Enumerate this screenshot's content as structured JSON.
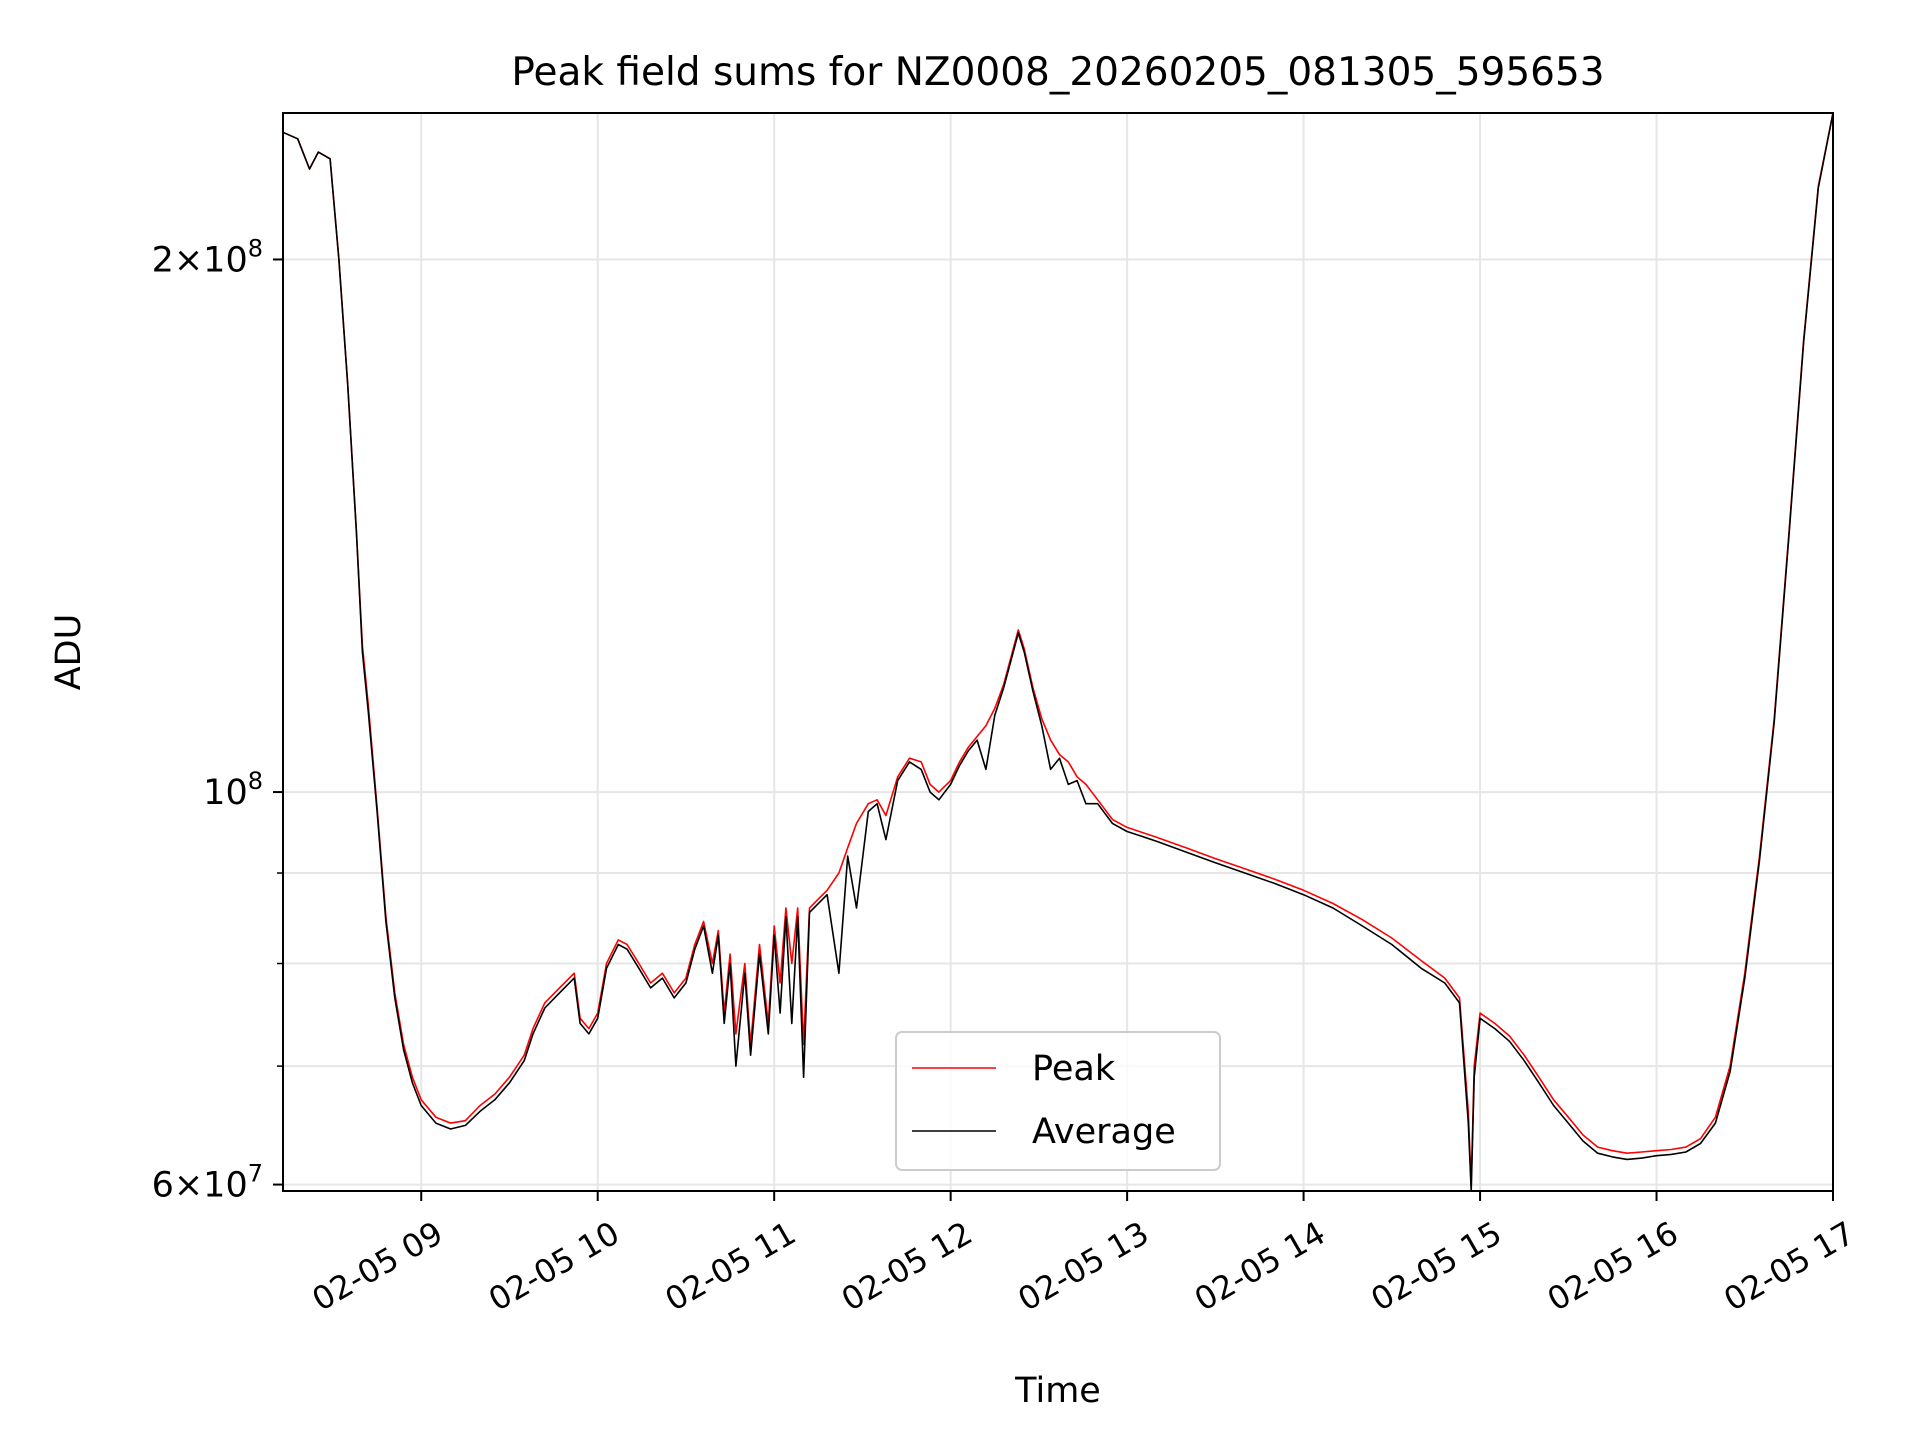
{
  "chart_data": {
    "type": "line",
    "title": "Peak field sums for NZ0008_20260205_081305_595653",
    "xlabel": "Time",
    "ylabel": "ADU",
    "yscale": "log",
    "xlim": [
      "2026-02-05 08:13",
      "2026-02-05 17:00"
    ],
    "ylim": [
      59500000,
      242000000
    ],
    "x_ticks": [
      {
        "t": "2026-02-05 09:00",
        "label": "02-05 09"
      },
      {
        "t": "2026-02-05 10:00",
        "label": "02-05 10"
      },
      {
        "t": "2026-02-05 11:00",
        "label": "02-05 11"
      },
      {
        "t": "2026-02-05 12:00",
        "label": "02-05 12"
      },
      {
        "t": "2026-02-05 13:00",
        "label": "02-05 13"
      },
      {
        "t": "2026-02-05 14:00",
        "label": "02-05 14"
      },
      {
        "t": "2026-02-05 15:00",
        "label": "02-05 15"
      },
      {
        "t": "2026-02-05 16:00",
        "label": "02-05 16"
      },
      {
        "t": "2026-02-05 17:00",
        "label": "02-05 17"
      }
    ],
    "y_major_ticks": [
      {
        "value": 60000000,
        "mantissa": "6",
        "exp": "7"
      },
      {
        "value": 100000000,
        "mantissa": "",
        "exp": "8"
      },
      {
        "value": 200000000,
        "mantissa": "2",
        "exp": "8"
      }
    ],
    "y_minor_ticks": [
      70000000,
      80000000,
      90000000
    ],
    "grid": true,
    "legend_position": "lower center",
    "series": [
      {
        "name": "Peak",
        "color": "#ff0000",
        "points": [
          [
            "08:13",
            236000000
          ],
          [
            "08:18",
            234000000
          ],
          [
            "08:22",
            225000000
          ],
          [
            "08:25",
            230000000
          ],
          [
            "08:29",
            228000000
          ],
          [
            "08:32",
            200000000
          ],
          [
            "08:35",
            170000000
          ],
          [
            "08:38",
            140000000
          ],
          [
            "08:40",
            121000000
          ],
          [
            "08:42",
            112000000
          ],
          [
            "08:45",
            98000000
          ],
          [
            "08:48",
            85000000
          ],
          [
            "08:51",
            77000000
          ],
          [
            "08:54",
            72000000
          ],
          [
            "08:57",
            69000000
          ],
          [
            "09:00",
            67000000
          ],
          [
            "09:05",
            65500000
          ],
          [
            "09:10",
            65000000
          ],
          [
            "09:15",
            65200000
          ],
          [
            "09:20",
            66500000
          ],
          [
            "09:25",
            67500000
          ],
          [
            "09:30",
            69000000
          ],
          [
            "09:35",
            71000000
          ],
          [
            "09:38",
            73500000
          ],
          [
            "09:42",
            76000000
          ],
          [
            "09:47",
            77500000
          ],
          [
            "09:52",
            79000000
          ],
          [
            "09:54",
            74500000
          ],
          [
            "09:57",
            73500000
          ],
          [
            "10:00",
            75000000
          ],
          [
            "10:03",
            80000000
          ],
          [
            "10:07",
            82500000
          ],
          [
            "10:10",
            82000000
          ],
          [
            "10:14",
            80000000
          ],
          [
            "10:18",
            78000000
          ],
          [
            "10:22",
            79000000
          ],
          [
            "10:26",
            77000000
          ],
          [
            "10:30",
            78500000
          ],
          [
            "10:33",
            82000000
          ],
          [
            "10:36",
            84500000
          ],
          [
            "10:39",
            80000000
          ],
          [
            "10:41",
            83500000
          ],
          [
            "10:43",
            75000000
          ],
          [
            "10:45",
            81000000
          ],
          [
            "10:47",
            73000000
          ],
          [
            "10:50",
            80000000
          ],
          [
            "10:52",
            72000000
          ],
          [
            "10:55",
            82000000
          ],
          [
            "10:58",
            74000000
          ],
          [
            "11:00",
            84000000
          ],
          [
            "11:02",
            78000000
          ],
          [
            "11:04",
            86000000
          ],
          [
            "11:06",
            80000000
          ],
          [
            "11:08",
            86000000
          ],
          [
            "11:10",
            72000000
          ],
          [
            "11:12",
            86000000
          ],
          [
            "11:15",
            87000000
          ],
          [
            "11:18",
            88000000
          ],
          [
            "11:22",
            90000000
          ],
          [
            "11:25",
            93000000
          ],
          [
            "11:28",
            96000000
          ],
          [
            "11:32",
            98500000
          ],
          [
            "11:35",
            99000000
          ],
          [
            "11:38",
            97000000
          ],
          [
            "11:42",
            102000000
          ],
          [
            "11:46",
            104500000
          ],
          [
            "11:50",
            104000000
          ],
          [
            "11:53",
            101000000
          ],
          [
            "11:56",
            100000000
          ],
          [
            "12:00",
            101500000
          ],
          [
            "12:03",
            104000000
          ],
          [
            "12:06",
            106000000
          ],
          [
            "12:09",
            107500000
          ],
          [
            "12:12",
            109000000
          ],
          [
            "12:15",
            111500000
          ],
          [
            "12:18",
            115000000
          ],
          [
            "12:21",
            120000000
          ],
          [
            "12:23",
            123500000
          ],
          [
            "12:25",
            120500000
          ],
          [
            "12:28",
            114500000
          ],
          [
            "12:31",
            110000000
          ],
          [
            "12:34",
            107000000
          ],
          [
            "12:37",
            105000000
          ],
          [
            "12:40",
            104000000
          ],
          [
            "12:43",
            102000000
          ],
          [
            "12:46",
            101000000
          ],
          [
            "12:50",
            99000000
          ],
          [
            "12:55",
            96500000
          ],
          [
            "13:00",
            95500000
          ],
          [
            "13:10",
            94300000
          ],
          [
            "13:20",
            93000000
          ],
          [
            "13:30",
            91700000
          ],
          [
            "13:40",
            90500000
          ],
          [
            "13:50",
            89300000
          ],
          [
            "14:00",
            88000000
          ],
          [
            "14:10",
            86500000
          ],
          [
            "14:20",
            84700000
          ],
          [
            "14:30",
            82700000
          ],
          [
            "14:40",
            80300000
          ],
          [
            "14:48",
            78500000
          ],
          [
            "14:53",
            76500000
          ],
          [
            "14:56",
            66000000
          ],
          [
            "14:57",
            60000000
          ],
          [
            "14:58",
            70000000
          ],
          [
            "15:00",
            75000000
          ],
          [
            "15:05",
            74000000
          ],
          [
            "15:10",
            72800000
          ],
          [
            "15:15",
            71000000
          ],
          [
            "15:20",
            69000000
          ],
          [
            "15:25",
            67000000
          ],
          [
            "15:30",
            65500000
          ],
          [
            "15:35",
            64000000
          ],
          [
            "15:40",
            63000000
          ],
          [
            "15:45",
            62700000
          ],
          [
            "15:50",
            62500000
          ],
          [
            "15:55",
            62600000
          ],
          [
            "16:00",
            62700000
          ],
          [
            "16:05",
            62800000
          ],
          [
            "16:10",
            63000000
          ],
          [
            "16:15",
            63700000
          ],
          [
            "16:20",
            65500000
          ],
          [
            "16:25",
            70000000
          ],
          [
            "16:30",
            79000000
          ],
          [
            "16:35",
            92000000
          ],
          [
            "16:40",
            110000000
          ],
          [
            "16:45",
            140000000
          ],
          [
            "16:50",
            180000000
          ],
          [
            "16:55",
            220000000
          ],
          [
            "17:00",
            242000000
          ]
        ]
      },
      {
        "name": "Average",
        "color": "#000000",
        "points": [
          [
            "08:13",
            236000000
          ],
          [
            "08:18",
            234000000
          ],
          [
            "08:22",
            225000000
          ],
          [
            "08:25",
            230000000
          ],
          [
            "08:29",
            228000000
          ],
          [
            "08:32",
            200000000
          ],
          [
            "08:35",
            170000000
          ],
          [
            "08:38",
            140000000
          ],
          [
            "08:40",
            120000000
          ],
          [
            "08:42",
            111000000
          ],
          [
            "08:45",
            97500000
          ],
          [
            "08:48",
            84500000
          ],
          [
            "08:51",
            76500000
          ],
          [
            "08:54",
            71500000
          ],
          [
            "08:57",
            68500000
          ],
          [
            "09:00",
            66500000
          ],
          [
            "09:05",
            65000000
          ],
          [
            "09:10",
            64500000
          ],
          [
            "09:15",
            64800000
          ],
          [
            "09:20",
            66000000
          ],
          [
            "09:25",
            67000000
          ],
          [
            "09:30",
            68500000
          ],
          [
            "09:35",
            70500000
          ],
          [
            "09:38",
            73000000
          ],
          [
            "09:42",
            75500000
          ],
          [
            "09:47",
            77000000
          ],
          [
            "09:52",
            78500000
          ],
          [
            "09:54",
            74000000
          ],
          [
            "09:57",
            73000000
          ],
          [
            "10:00",
            74500000
          ],
          [
            "10:03",
            79500000
          ],
          [
            "10:07",
            82000000
          ],
          [
            "10:10",
            81500000
          ],
          [
            "10:14",
            79500000
          ],
          [
            "10:18",
            77500000
          ],
          [
            "10:22",
            78500000
          ],
          [
            "10:26",
            76500000
          ],
          [
            "10:30",
            78000000
          ],
          [
            "10:33",
            81500000
          ],
          [
            "10:36",
            84000000
          ],
          [
            "10:39",
            79000000
          ],
          [
            "10:41",
            83000000
          ],
          [
            "10:43",
            74000000
          ],
          [
            "10:45",
            80000000
          ],
          [
            "10:47",
            70000000
          ],
          [
            "10:50",
            79000000
          ],
          [
            "10:52",
            71000000
          ],
          [
            "10:55",
            81000000
          ],
          [
            "10:58",
            73000000
          ],
          [
            "11:00",
            83000000
          ],
          [
            "11:02",
            75000000
          ],
          [
            "11:04",
            85000000
          ],
          [
            "11:06",
            74000000
          ],
          [
            "11:08",
            85000000
          ],
          [
            "11:10",
            69000000
          ],
          [
            "11:12",
            85500000
          ],
          [
            "11:15",
            86500000
          ],
          [
            "11:18",
            87500000
          ],
          [
            "11:22",
            79000000
          ],
          [
            "11:25",
            92000000
          ],
          [
            "11:28",
            86000000
          ],
          [
            "11:32",
            97500000
          ],
          [
            "11:35",
            98500000
          ],
          [
            "11:38",
            94000000
          ],
          [
            "11:42",
            101500000
          ],
          [
            "11:46",
            104000000
          ],
          [
            "11:50",
            103000000
          ],
          [
            "11:53",
            100000000
          ],
          [
            "11:56",
            99000000
          ],
          [
            "12:00",
            101000000
          ],
          [
            "12:03",
            103500000
          ],
          [
            "12:06",
            105500000
          ],
          [
            "12:09",
            107000000
          ],
          [
            "12:12",
            103000000
          ],
          [
            "12:15",
            110500000
          ],
          [
            "12:18",
            114500000
          ],
          [
            "12:21",
            119500000
          ],
          [
            "12:23",
            123000000
          ],
          [
            "12:25",
            120000000
          ],
          [
            "12:28",
            114000000
          ],
          [
            "12:31",
            109000000
          ],
          [
            "12:34",
            103000000
          ],
          [
            "12:37",
            104500000
          ],
          [
            "12:40",
            101000000
          ],
          [
            "12:43",
            101500000
          ],
          [
            "12:46",
            98500000
          ],
          [
            "12:50",
            98500000
          ],
          [
            "12:55",
            96000000
          ],
          [
            "13:00",
            95000000
          ],
          [
            "13:10",
            93800000
          ],
          [
            "13:20",
            92500000
          ],
          [
            "13:30",
            91200000
          ],
          [
            "13:40",
            90000000
          ],
          [
            "13:50",
            88800000
          ],
          [
            "14:00",
            87500000
          ],
          [
            "14:10",
            86000000
          ],
          [
            "14:20",
            84000000
          ],
          [
            "14:30",
            82000000
          ],
          [
            "14:40",
            79500000
          ],
          [
            "14:48",
            78000000
          ],
          [
            "14:53",
            76000000
          ],
          [
            "14:56",
            65000000
          ],
          [
            "14:57",
            59500000
          ],
          [
            "14:58",
            69000000
          ],
          [
            "15:00",
            74500000
          ],
          [
            "15:05",
            73500000
          ],
          [
            "15:10",
            72300000
          ],
          [
            "15:15",
            70500000
          ],
          [
            "15:20",
            68500000
          ],
          [
            "15:25",
            66500000
          ],
          [
            "15:30",
            65000000
          ],
          [
            "15:35",
            63500000
          ],
          [
            "15:40",
            62500000
          ],
          [
            "15:45",
            62200000
          ],
          [
            "15:50",
            62000000
          ],
          [
            "15:55",
            62100000
          ],
          [
            "16:00",
            62300000
          ],
          [
            "16:05",
            62400000
          ],
          [
            "16:10",
            62600000
          ],
          [
            "16:15",
            63300000
          ],
          [
            "16:20",
            65000000
          ],
          [
            "16:25",
            69500000
          ],
          [
            "16:30",
            78500000
          ],
          [
            "16:35",
            91500000
          ],
          [
            "16:40",
            109500000
          ],
          [
            "16:45",
            139500000
          ],
          [
            "16:50",
            179500000
          ],
          [
            "16:55",
            219500000
          ],
          [
            "17:00",
            242000000
          ]
        ]
      }
    ]
  }
}
